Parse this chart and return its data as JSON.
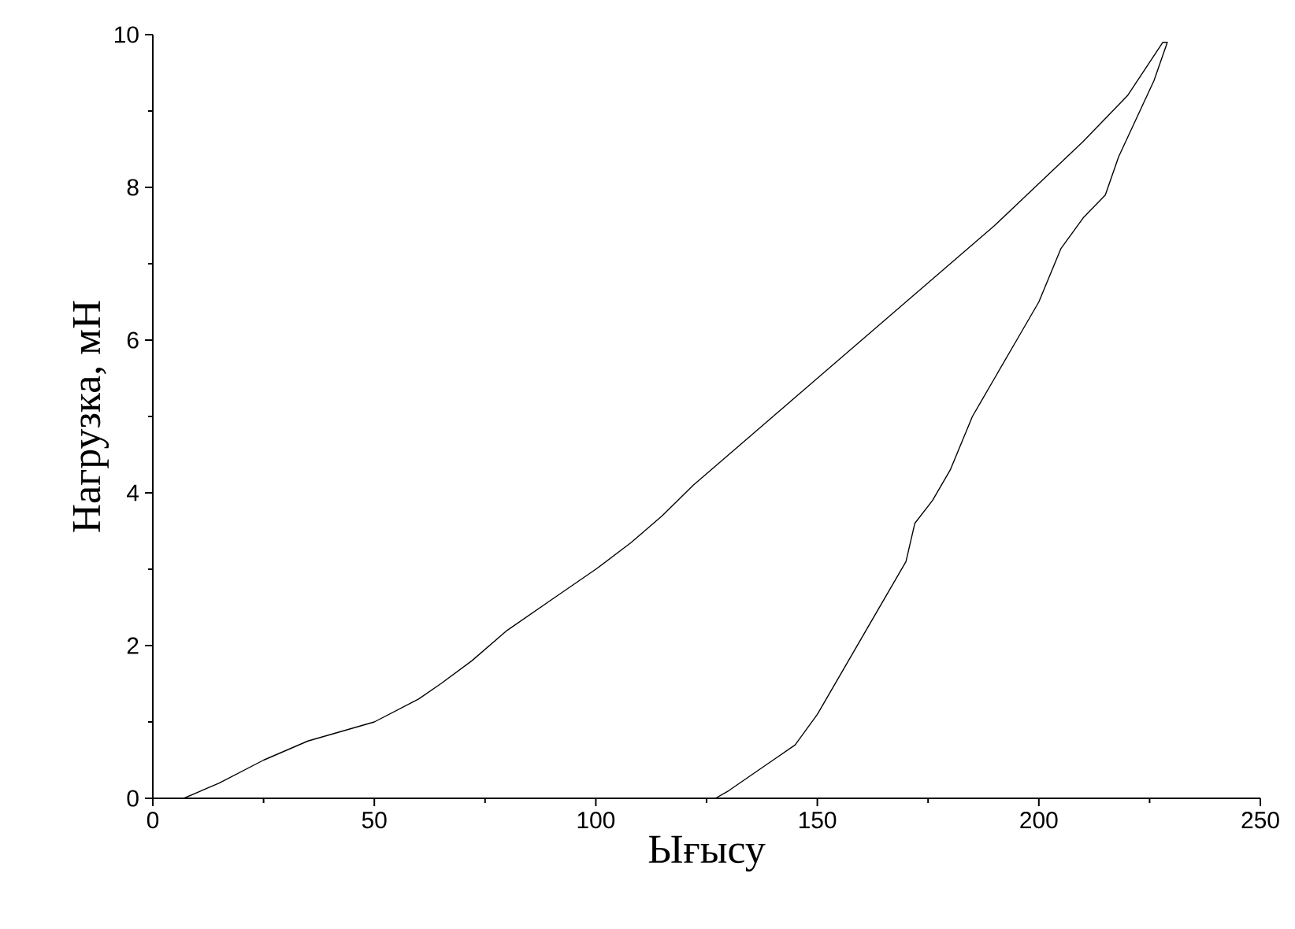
{
  "chart_data": {
    "type": "line",
    "xlabel": "Ығысу",
    "ylabel": "Нагрузка, мН",
    "x": [
      7,
      15,
      25,
      35,
      50,
      60,
      65,
      72,
      80,
      90,
      100,
      108,
      115,
      122,
      130,
      140,
      160,
      180,
      190,
      210,
      220,
      228,
      229,
      226,
      222,
      218,
      215,
      210,
      205,
      200,
      195,
      190,
      185,
      180,
      176,
      172,
      170,
      165,
      160,
      155,
      150,
      145,
      140,
      135,
      130,
      127
    ],
    "values": [
      0,
      0.2,
      0.5,
      0.75,
      1.0,
      1.3,
      1.5,
      1.8,
      2.2,
      2.6,
      3.0,
      3.35,
      3.7,
      4.1,
      4.5,
      5.0,
      6.0,
      7.0,
      7.5,
      8.6,
      9.2,
      9.9,
      9.9,
      9.4,
      8.9,
      8.4,
      7.9,
      7.6,
      7.2,
      6.5,
      6.0,
      5.5,
      5.0,
      4.3,
      3.9,
      3.6,
      3.1,
      2.6,
      2.1,
      1.6,
      1.1,
      0.7,
      0.5,
      0.3,
      0.1,
      0
    ],
    "color": "#000000",
    "xlim": [
      0,
      250
    ],
    "ylim": [
      0,
      10
    ],
    "xticks": [
      0,
      50,
      100,
      150,
      200,
      250
    ],
    "yticks": [
      0,
      2,
      4,
      6,
      8,
      10
    ],
    "grid": false,
    "marker": "none",
    "line_style": "solid"
  }
}
